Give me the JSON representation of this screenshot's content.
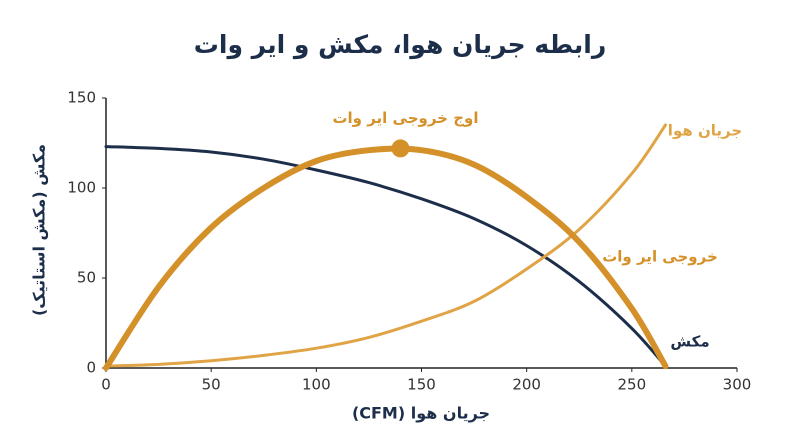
{
  "chart_data": {
    "type": "line",
    "title": "رابطه جریان هوا، مکش و ایر وات",
    "x_label": "جریان هوا (CFM)",
    "y_label": "مکش (مکش استاتیک)",
    "x": [
      0,
      25,
      50,
      75,
      100,
      125,
      150,
      175,
      200,
      225,
      250,
      266
    ],
    "series": [
      {
        "name": "مکش",
        "color": "#1c2e4a",
        "width": 3,
        "values": [
          123,
          122,
          120,
          116,
          110,
          103,
          94,
          83,
          68,
          48,
          22,
          1
        ]
      },
      {
        "name": "جریان هوا",
        "color": "#e0a446",
        "width": 3,
        "values": [
          1,
          2,
          4,
          7,
          11,
          17,
          26,
          37,
          55,
          77,
          108,
          135
        ]
      },
      {
        "name": "خروجی ایر وات",
        "color": "#d4912a",
        "width": 6,
        "values": [
          0,
          45,
          78,
          100,
          115,
          121,
          121,
          113,
          95,
          70,
          33,
          1
        ]
      }
    ],
    "annotation": {
      "text": "اوج خروجی ایر وات",
      "x": 140,
      "y": 122
    },
    "xlim": [
      0,
      300
    ],
    "xticks": [
      0,
      50,
      100,
      150,
      200,
      250,
      300
    ],
    "ylim": [
      0,
      150
    ],
    "yticks": [
      0,
      50,
      100,
      150
    ],
    "grid": false
  }
}
